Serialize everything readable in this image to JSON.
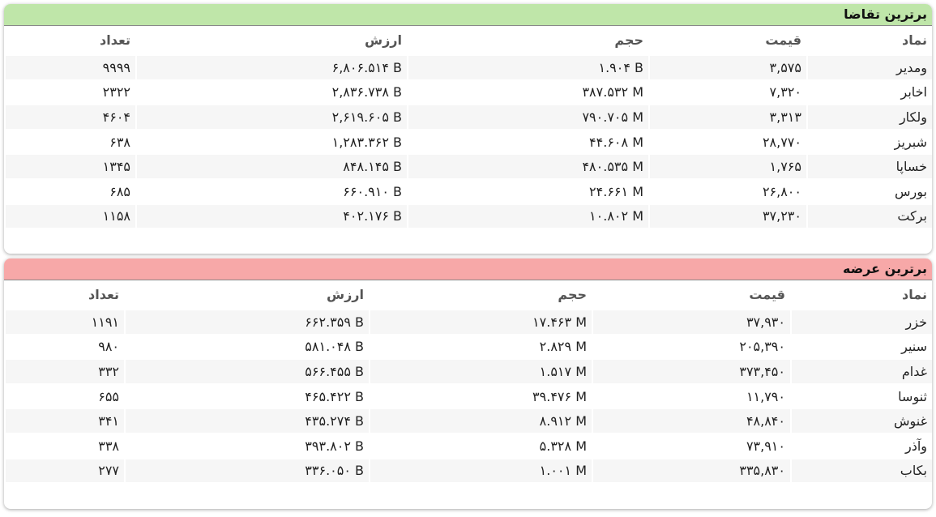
{
  "panels": [
    {
      "title": "برترین تقاضا",
      "headers": [
        "نماد",
        "قیمت",
        "حجم",
        "ارزش",
        "تعداد"
      ],
      "rows": [
        [
          "ومدیر",
          "۳,۵۷۵",
          "۱.۹۰۴ B",
          "۶,۸۰۶.۵۱۴ B",
          "۹۹۹۹"
        ],
        [
          "اخابر",
          "۷,۳۲۰",
          "۳۸۷.۵۳۲ M",
          "۲,۸۳۶.۷۳۸ B",
          "۲۳۲۲"
        ],
        [
          "ولکار",
          "۳,۳۱۳",
          "۷۹۰.۷۰۵ M",
          "۲,۶۱۹.۶۰۵ B",
          "۴۶۰۴"
        ],
        [
          "شبریز",
          "۲۸,۷۷۰",
          "۴۴.۶۰۸ M",
          "۱,۲۸۳.۳۶۲ B",
          "۶۳۸"
        ],
        [
          "خساپا",
          "۱,۷۶۵",
          "۴۸۰.۵۳۵ M",
          "۸۴۸.۱۴۵ B",
          "۱۳۴۵"
        ],
        [
          "بورس",
          "۲۶,۸۰۰",
          "۲۴.۶۶۱ M",
          "۶۶۰.۹۱۰ B",
          "۶۸۵"
        ],
        [
          "برکت",
          "۳۷,۲۳۰",
          "۱۰.۸۰۲ M",
          "۴۰۲.۱۷۶ B",
          "۱۱۵۸"
        ]
      ]
    },
    {
      "title": "برترین عرضه",
      "headers": [
        "نماد",
        "قیمت",
        "حجم",
        "ارزش",
        "تعداد"
      ],
      "rows": [
        [
          "خزر",
          "۳۷,۹۳۰",
          "۱۷.۴۶۳ M",
          "۶۶۲.۳۵۹ B",
          "۱۱۹۱"
        ],
        [
          "سنیر",
          "۲۰۵,۳۹۰",
          "۲.۸۲۹ M",
          "۵۸۱.۰۴۸ B",
          "۹۸۰"
        ],
        [
          "غدام",
          "۳۷۳,۴۵۰",
          "۱.۵۱۷ M",
          "۵۶۶.۴۵۵ B",
          "۳۳۲"
        ],
        [
          "ثنوسا",
          "۱۱,۷۹۰",
          "۳۹.۴۷۶ M",
          "۴۶۵.۴۲۲ B",
          "۶۵۵"
        ],
        [
          "غنوش",
          "۴۸,۸۴۰",
          "۸.۹۱۲ M",
          "۴۳۵.۲۷۴ B",
          "۳۴۱"
        ],
        [
          "وآذر",
          "۷۳,۹۱۰",
          "۵.۳۲۸ M",
          "۳۹۳.۸۰۲ B",
          "۳۳۸"
        ],
        [
          "بکاب",
          "۳۳۵,۸۳۰",
          "۱.۰۰۱ M",
          "۳۳۶.۰۵۰ B",
          "۲۷۷"
        ]
      ]
    }
  ]
}
